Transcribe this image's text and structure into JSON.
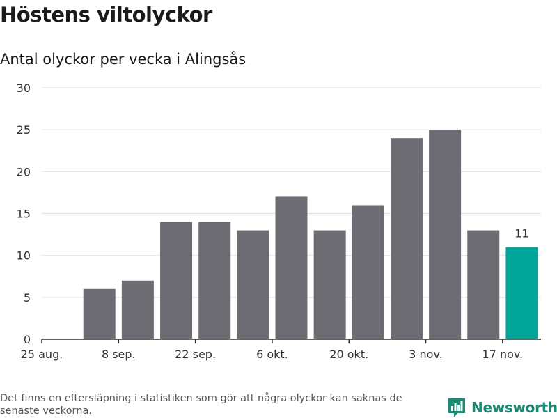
{
  "title": "Höstens viltolyckor",
  "subtitle": "Antal olyckor per vecka i Alingsås",
  "footnote": "Det finns en eftersläpning i statistiken som gör att några olyckor kan saknas de senaste veckorna.",
  "brand": "Newsworthy",
  "colors": {
    "bar": "#6d6c72",
    "highlight": "#00a69a",
    "grid": "#e3e3e3",
    "axis": "#333333",
    "brand": "#1b8a74"
  },
  "chart_data": {
    "type": "bar",
    "categories": [
      "25 aug.",
      "1 sep.",
      "8 sep.",
      "15 sep.",
      "22 sep.",
      "29 sep.",
      "6 okt.",
      "13 okt.",
      "20 okt.",
      "27 okt.",
      "3 nov.",
      "10 nov.",
      "17 nov."
    ],
    "values": [
      0,
      6,
      7,
      14,
      14,
      13,
      17,
      13,
      16,
      24,
      25,
      13,
      11
    ],
    "tick_labels": [
      "25 aug.",
      "8 sep.",
      "22 sep.",
      "6 okt.",
      "20 okt.",
      "3 nov.",
      "17 nov."
    ],
    "tick_indices": [
      0,
      2,
      4,
      6,
      8,
      10,
      12
    ],
    "highlight_index": 12,
    "highlight_label": "11",
    "ylim": [
      0,
      30
    ],
    "yticks": [
      0,
      5,
      10,
      15,
      20,
      25,
      30
    ],
    "grid": true,
    "xlabel": "",
    "ylabel": ""
  }
}
